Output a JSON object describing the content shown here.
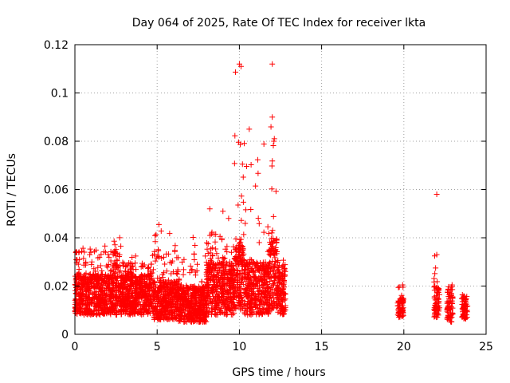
{
  "chart_data": {
    "type": "scatter",
    "title": "Day 064 of 2025, Rate Of TEC Index for receiver lkta",
    "xlabel": "GPS time / hours",
    "ylabel": "ROTI / TECUs",
    "xlim": [
      0,
      25
    ],
    "ylim": [
      0,
      0.12
    ],
    "x_ticks": [
      0,
      5,
      10,
      15,
      20,
      25
    ],
    "x_tick_labels": [
      "0",
      "5",
      "10",
      "15",
      "20",
      "25"
    ],
    "y_ticks": [
      0,
      0.02,
      0.04,
      0.06,
      0.08,
      0.1,
      0.12
    ],
    "y_tick_labels": [
      "0",
      "0.02",
      "0.04",
      "0.06",
      "0.08",
      "0.1",
      "0.12"
    ],
    "grid": true,
    "marker": "+",
    "marker_color": "#ff0000",
    "series": [
      {
        "name": "ROTI",
        "description": "Dense ROTI samples from 0 to ~12.8 h and sparse clusters near 19.8, 22, 22.8 and 23.7 h",
        "segments": [
          {
            "x_range": [
              0.0,
              2.3
            ],
            "y_base": [
              0.008,
              0.025
            ],
            "y_max": 0.043
          },
          {
            "x_range": [
              2.3,
              2.8
            ],
            "y_base": [
              0.008,
              0.03
            ],
            "y_max": 0.045
          },
          {
            "x_range": [
              2.8,
              4.8
            ],
            "y_base": [
              0.008,
              0.025
            ],
            "y_max": 0.033
          },
          {
            "x_range": [
              4.8,
              6.3
            ],
            "y_base": [
              0.006,
              0.022
            ],
            "y_max": 0.046
          },
          {
            "x_range": [
              6.3,
              8.0
            ],
            "y_base": [
              0.005,
              0.02
            ],
            "y_max": 0.045
          },
          {
            "x_range": [
              8.0,
              9.7
            ],
            "y_base": [
              0.008,
              0.03
            ],
            "y_max": 0.052
          },
          {
            "x_range": [
              9.7,
              10.3
            ],
            "y_base": [
              0.01,
              0.04
            ],
            "y_max": 0.112
          },
          {
            "x_range": [
              10.3,
              11.8
            ],
            "y_base": [
              0.008,
              0.03
            ],
            "y_max": 0.085
          },
          {
            "x_range": [
              11.8,
              12.3
            ],
            "y_base": [
              0.01,
              0.04
            ],
            "y_max": 0.112
          },
          {
            "x_range": [
              12.3,
              12.8
            ],
            "y_base": [
              0.008,
              0.028
            ],
            "y_max": 0.033
          }
        ],
        "clusters": [
          {
            "x": 19.8,
            "y_range": [
              0.007,
              0.015
            ],
            "y_max": 0.026
          },
          {
            "x": 22.0,
            "y_range": [
              0.007,
              0.02
            ],
            "y_max": 0.058
          },
          {
            "x": 22.8,
            "y_range": [
              0.005,
              0.018
            ],
            "y_max": 0.024
          },
          {
            "x": 23.7,
            "y_range": [
              0.006,
              0.015
            ],
            "y_max": 0.018
          }
        ],
        "notable_points": [
          {
            "x": 10.0,
            "y": 0.112
          },
          {
            "x": 10.1,
            "y": 0.111
          },
          {
            "x": 12.0,
            "y": 0.112
          },
          {
            "x": 12.0,
            "y": 0.09
          },
          {
            "x": 12.1,
            "y": 0.08
          },
          {
            "x": 10.6,
            "y": 0.085
          },
          {
            "x": 22.0,
            "y": 0.058
          },
          {
            "x": 22.0,
            "y": 0.033
          },
          {
            "x": 8.2,
            "y": 0.052
          },
          {
            "x": 9.0,
            "y": 0.051
          }
        ]
      }
    ]
  }
}
